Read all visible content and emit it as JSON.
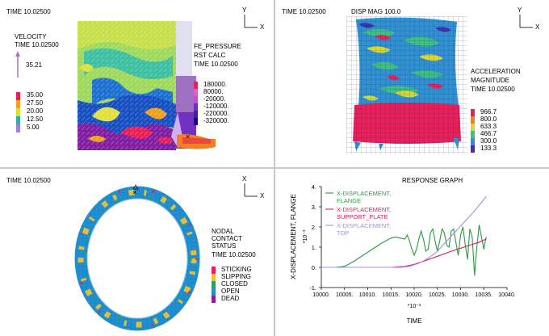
{
  "q1": {
    "time": "TIME 10.02500",
    "velocity_title": "VELOCITY",
    "velocity_time": "TIME 10.02500",
    "arrow_value": "35.21",
    "legend": [
      {
        "label": "35.00",
        "color": "#e8205a"
      },
      {
        "label": "27.50",
        "color": "#f0a020"
      },
      {
        "label": "20.00",
        "color": "#d8e030"
      },
      {
        "label": "12.50",
        "color": "#30b0a0"
      },
      {
        "label": "5.00",
        "color": "#a080e0"
      }
    ],
    "fe_title": "FE_PRESSURE",
    "fe_sub": "RST CALC",
    "fe_time": "TIME 10.02500",
    "fe_legend": [
      {
        "label": "180000.",
        "color": "#e8205a"
      },
      {
        "label": "80000.",
        "color": "#e060c0"
      },
      {
        "label": "-20000.",
        "color": "#c050d0"
      },
      {
        "label": "-120000.",
        "color": "#7030c0"
      },
      {
        "label": "-220000.",
        "color": "#4020a0"
      },
      {
        "label": "-320000.",
        "color": "#200080"
      }
    ],
    "triad": {
      "y": "Y",
      "x": "X"
    }
  },
  "q2": {
    "time": "TIME 10.02500",
    "disp": "DISP MAG 100.0",
    "accel_title": "ACCELERATION",
    "accel_sub": "MAGNITUDE",
    "accel_time": "TIME 10.02500",
    "legend": [
      {
        "label": "966.7",
        "color": "#e8205a"
      },
      {
        "label": "800.0",
        "color": "#f08020"
      },
      {
        "label": "633.3",
        "color": "#d8d830"
      },
      {
        "label": "466.7",
        "color": "#40c080"
      },
      {
        "label": "300.0",
        "color": "#3090d0"
      },
      {
        "label": "133.3",
        "color": "#4030b0"
      }
    ],
    "triad": {
      "y": "Y",
      "x": "X"
    }
  },
  "q3": {
    "time": "TIME 10.02500",
    "status_title": [
      "NODAL",
      "CONTACT",
      "STATUS"
    ],
    "status_time": "TIME 10.02500",
    "legend": [
      {
        "label": "STICKING",
        "color": "#e8205a"
      },
      {
        "label": "SLIPPING",
        "color": "#f0c030"
      },
      {
        "label": "CLOSED",
        "color": "#30a060"
      },
      {
        "label": "OPEN",
        "color": "#2090d0"
      },
      {
        "label": "DEAD",
        "color": "#902090"
      }
    ],
    "triad": {
      "y": "X",
      "x": "X"
    }
  },
  "q4": {
    "title": "RESPONSE GRAPH",
    "ylabel": "X-DISPLACEMENT, FLANGE",
    "yexp": "*10⁻³",
    "xexp": "*10⁻³",
    "xlabel": "TIME"
  },
  "chart_data": {
    "type": "line",
    "title": "RESPONSE GRAPH",
    "xlabel": "TIME",
    "ylabel": "X-DISPLACEMENT, FLANGE",
    "x_multiplier": "*10⁻³",
    "y_multiplier": "*10⁻³",
    "xlim": [
      10000,
      10040
    ],
    "ylim": [
      -1,
      4
    ],
    "xticks": [
      "10000.",
      "10005.",
      "10010.",
      "10015.",
      "10020.",
      "10025.",
      "10030.",
      "10035.",
      "10040."
    ],
    "yticks": [
      "4.",
      "3.",
      "2.",
      "1.",
      "0.",
      "-1."
    ],
    "series": [
      {
        "name": "X-DISPLACEMENT, FLANGE",
        "color": "#2a9a40",
        "x": [
          10000,
          10003,
          10005,
          10007,
          10009,
          10011,
          10013,
          10015,
          10016,
          10017,
          10018,
          10018.5,
          10019,
          10019.5,
          10020,
          10020.5,
          10021,
          10021.5,
          10022,
          10022.5,
          10023,
          10023.5,
          10024,
          10024.5,
          10025,
          10025.5,
          10026,
          10026.5,
          10027,
          10027.5,
          10028,
          10028.5,
          10029,
          10029.5,
          10030,
          10030.5,
          10031,
          10031.5,
          10032,
          10032.5,
          10033,
          10033.5,
          10034,
          10034.5,
          10035,
          10035.5
        ],
        "y": [
          0,
          0,
          0.05,
          0.3,
          0.6,
          0.9,
          1.2,
          1.45,
          1.5,
          1.45,
          1.4,
          1.6,
          1.3,
          0.9,
          0.6,
          0.9,
          1.4,
          1.8,
          1.4,
          0.8,
          0.9,
          1.7,
          1.9,
          1.3,
          0.8,
          1.3,
          1.9,
          1.7,
          1.1,
          1.0,
          1.8,
          1.9,
          1.2,
          0.6,
          1.6,
          2.0,
          1.1,
          0.4,
          1.9,
          1.5,
          -0.4,
          1.0,
          2.1,
          1.5,
          0.9,
          1.5
        ]
      },
      {
        "name": "X-DISPLACEMENT, SUPPORT_PLATE",
        "color": "#e0205a",
        "x": [
          10000,
          10010,
          10015,
          10018,
          10020,
          10022,
          10025,
          10028,
          10030,
          10032,
          10034,
          10035.5
        ],
        "y": [
          0,
          0,
          0,
          0.05,
          0.15,
          0.3,
          0.55,
          0.8,
          0.95,
          1.1,
          1.25,
          1.4
        ]
      },
      {
        "name": "X-DISPLACEMENT, TOP",
        "color": "#a090e0",
        "x": [
          10000,
          10010,
          10017,
          10019,
          10021,
          10023,
          10025,
          10027,
          10029,
          10031,
          10033,
          10035.5
        ],
        "y": [
          0,
          0,
          0,
          0.05,
          0.2,
          0.45,
          0.8,
          1.3,
          1.8,
          2.3,
          2.8,
          3.5
        ]
      }
    ],
    "legend_placement": "top-left",
    "grid": false
  }
}
